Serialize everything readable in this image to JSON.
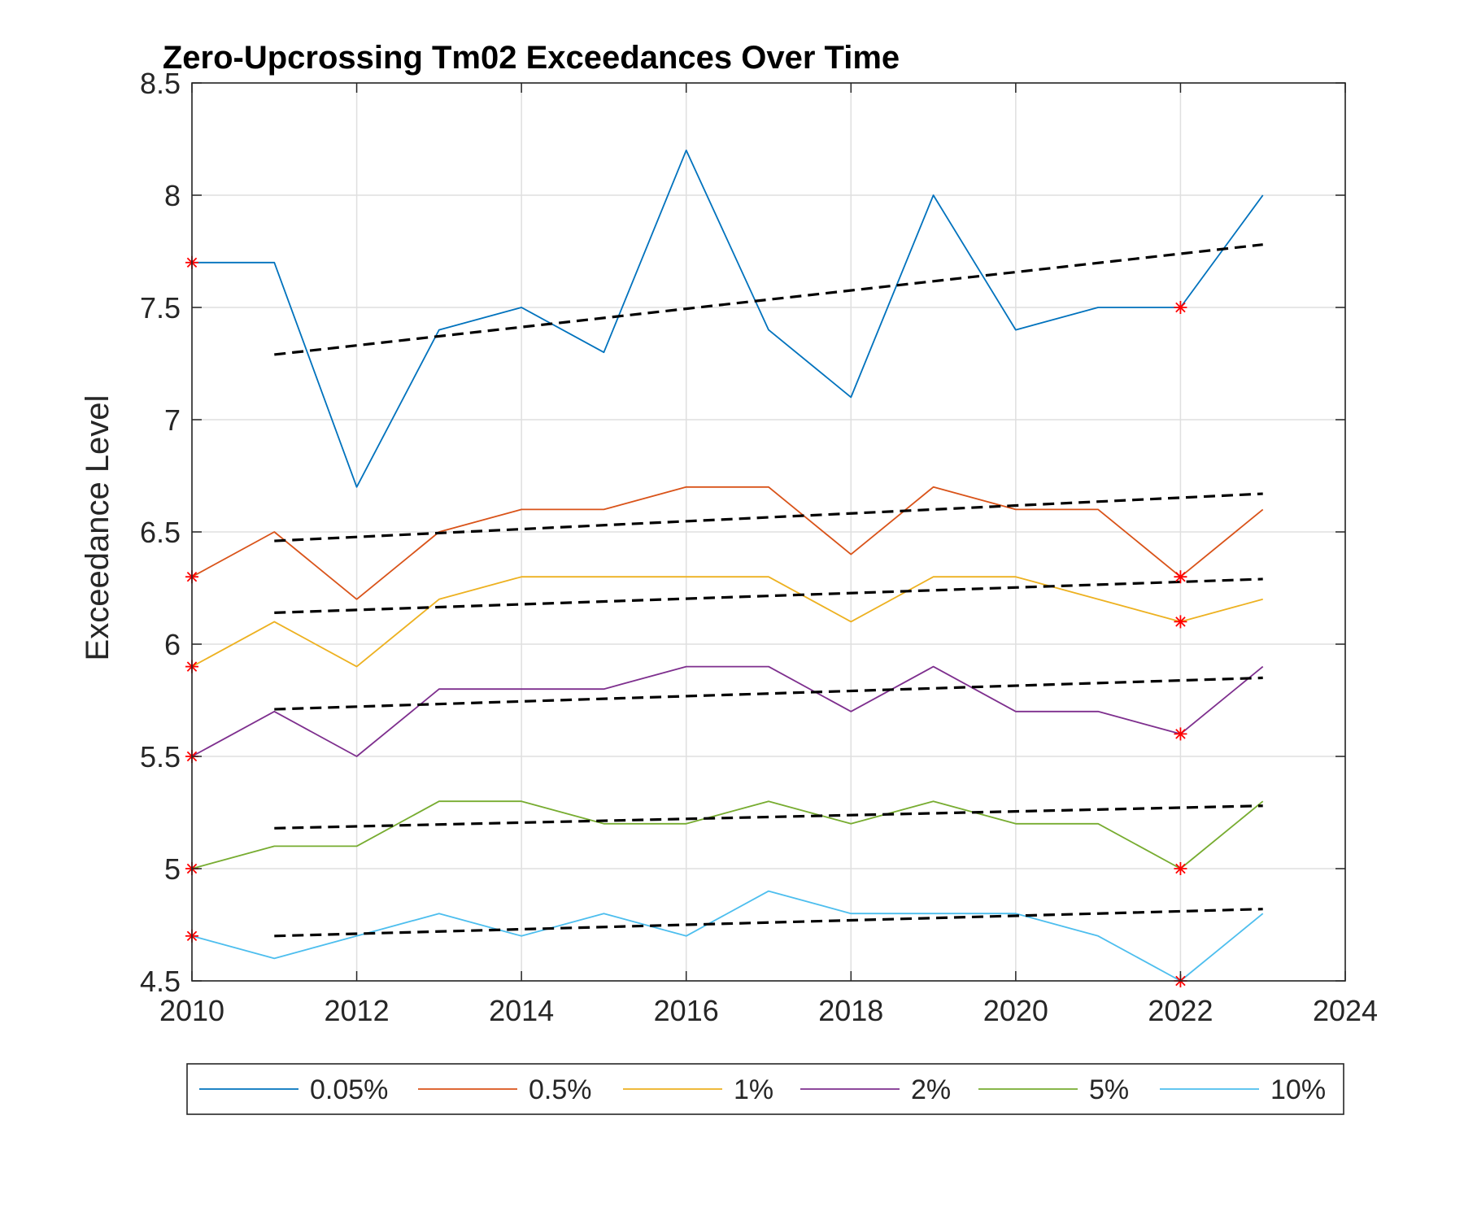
{
  "chart_data": {
    "type": "line",
    "title": "Zero-Upcrossing Tm02 Exceedances Over Time",
    "xlabel": "",
    "ylabel": "Exceedance Level",
    "xlim": [
      2010,
      2024
    ],
    "ylim": [
      4.5,
      8.5
    ],
    "x_ticks": [
      "2010",
      "2012",
      "2014",
      "2016",
      "2018",
      "2020",
      "2022",
      "2024"
    ],
    "y_ticks": [
      "4.5",
      "5",
      "5.5",
      "6",
      "6.5",
      "7",
      "7.5",
      "8",
      "8.5"
    ],
    "grid": true,
    "legend_position": "bottom-outside",
    "x": [
      2010,
      2011,
      2012,
      2013,
      2014,
      2015,
      2016,
      2017,
      2018,
      2019,
      2020,
      2021,
      2022,
      2023
    ],
    "series": [
      {
        "name": "0.05%",
        "color": "#0072BD",
        "values": [
          7.7,
          7.7,
          6.7,
          7.4,
          7.5,
          7.3,
          8.2,
          7.4,
          7.1,
          8.0,
          7.4,
          7.5,
          7.5,
          8.0
        ],
        "trend": [
          [
            2011,
            7.29
          ],
          [
            2023,
            7.78
          ]
        ],
        "markers": [
          [
            2010,
            7.7
          ],
          [
            2022,
            7.5
          ]
        ]
      },
      {
        "name": "0.5%",
        "color": "#D95319",
        "values": [
          6.3,
          6.5,
          6.2,
          6.5,
          6.6,
          6.6,
          6.7,
          6.7,
          6.4,
          6.7,
          6.6,
          6.6,
          6.3,
          6.6
        ],
        "trend": [
          [
            2011,
            6.46
          ],
          [
            2023,
            6.67
          ]
        ],
        "markers": [
          [
            2010,
            6.3
          ],
          [
            2022,
            6.3
          ]
        ]
      },
      {
        "name": "1%",
        "color": "#EDB120",
        "values": [
          5.9,
          6.1,
          5.9,
          6.2,
          6.3,
          6.3,
          6.3,
          6.3,
          6.1,
          6.3,
          6.3,
          6.2,
          6.1,
          6.2
        ],
        "trend": [
          [
            2011,
            6.14
          ],
          [
            2023,
            6.29
          ]
        ],
        "markers": [
          [
            2010,
            5.9
          ],
          [
            2022,
            6.1
          ]
        ]
      },
      {
        "name": "2%",
        "color": "#7E2F8E",
        "values": [
          5.5,
          5.7,
          5.5,
          5.8,
          5.8,
          5.8,
          5.9,
          5.9,
          5.7,
          5.9,
          5.7,
          5.7,
          5.6,
          5.9
        ],
        "trend": [
          [
            2011,
            5.71
          ],
          [
            2023,
            5.85
          ]
        ],
        "markers": [
          [
            2010,
            5.5
          ],
          [
            2022,
            5.6
          ]
        ]
      },
      {
        "name": "5%",
        "color": "#77AC30",
        "values": [
          5.0,
          5.1,
          5.1,
          5.3,
          5.3,
          5.2,
          5.2,
          5.3,
          5.2,
          5.3,
          5.2,
          5.2,
          5.0,
          5.3
        ],
        "trend": [
          [
            2011,
            5.18
          ],
          [
            2023,
            5.28
          ]
        ],
        "markers": [
          [
            2010,
            5.0
          ],
          [
            2022,
            5.0
          ]
        ]
      },
      {
        "name": "10%",
        "color": "#4DBEEE",
        "values": [
          4.7,
          4.6,
          4.7,
          4.8,
          4.7,
          4.8,
          4.7,
          4.9,
          4.8,
          4.8,
          4.8,
          4.7,
          4.5,
          4.8
        ],
        "trend": [
          [
            2011,
            4.7
          ],
          [
            2023,
            4.82
          ]
        ],
        "markers": [
          [
            2010,
            4.7
          ],
          [
            2022,
            4.5
          ]
        ]
      }
    ],
    "trend_color": "#000000",
    "marker_color": "#FF0000"
  }
}
